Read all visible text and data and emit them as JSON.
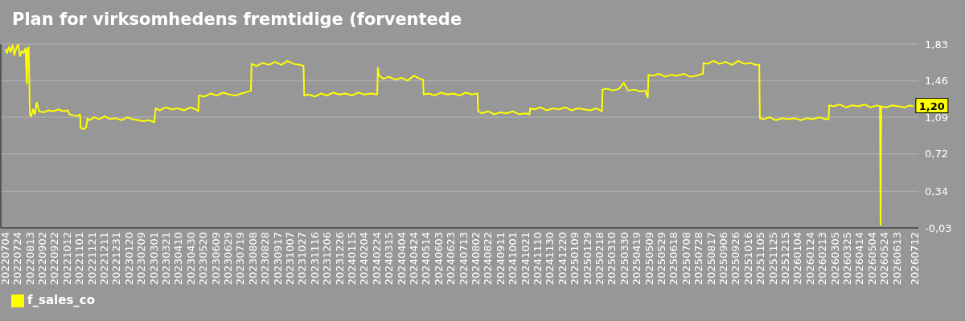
{
  "chart_data": {
    "type": "line",
    "title": "Plan for virksomhedens fremtidige (forventede",
    "x": [
      "2022-07-04",
      "2022-07-07",
      "2022-07-10",
      "2022-07-13",
      "2022-07-16",
      "2022-07-19",
      "2022-07-22",
      "2022-07-25",
      "2022-07-28",
      "2022-07-31",
      "2022-08-03",
      "2022-08-06",
      "2022-08-08",
      "2022-08-09",
      "2022-08-11",
      "2022-08-13",
      "2022-08-15",
      "2022-08-18",
      "2022-08-21",
      "2022-08-24",
      "2022-08-28",
      "2022-09-04",
      "2022-09-12",
      "2022-09-20",
      "2022-09-28",
      "2022-10-06",
      "2022-10-13",
      "2022-10-16",
      "2022-10-22",
      "2022-10-28",
      "2022-11-02",
      "2022-11-03",
      "2022-11-08",
      "2022-11-12",
      "2022-11-14",
      "2022-11-17",
      "2022-11-25",
      "2022-12-03",
      "2022-12-12",
      "2022-12-21",
      "2022-12-30",
      "2023-01-08",
      "2023-01-17",
      "2023-01-26",
      "2023-02-04",
      "2023-02-13",
      "2023-02-22",
      "2023-03-02",
      "2023-03-04",
      "2023-03-11",
      "2023-03-20",
      "2023-03-30",
      "2023-04-09",
      "2023-04-19",
      "2023-04-29",
      "2023-05-08",
      "2023-05-12",
      "2023-05-13",
      "2023-05-22",
      "2023-06-01",
      "2023-06-11",
      "2023-06-21",
      "2023-07-01",
      "2023-07-11",
      "2023-07-21",
      "2023-08-01",
      "2023-08-05",
      "2023-08-06",
      "2023-08-14",
      "2023-08-24",
      "2023-09-03",
      "2023-09-13",
      "2023-09-23",
      "2023-10-03",
      "2023-10-13",
      "2023-10-23",
      "2023-10-29",
      "2023-10-30",
      "2023-11-06",
      "2023-11-16",
      "2023-11-26",
      "2023-12-06",
      "2023-12-16",
      "2023-12-26",
      "2024-01-05",
      "2024-01-15",
      "2024-01-25",
      "2024-02-04",
      "2024-02-14",
      "2024-02-25",
      "2024-02-26",
      "2024-02-28",
      "2024-03-06",
      "2024-03-15",
      "2024-03-25",
      "2024-04-04",
      "2024-04-14",
      "2024-04-24",
      "2024-05-04",
      "2024-05-09",
      "2024-05-10",
      "2024-05-18",
      "2024-05-28",
      "2024-06-07",
      "2024-06-17",
      "2024-06-27",
      "2024-07-07",
      "2024-07-17",
      "2024-07-27",
      "2024-08-05",
      "2024-08-06",
      "2024-08-12",
      "2024-08-22",
      "2024-09-01",
      "2024-09-11",
      "2024-09-21",
      "2024-10-01",
      "2024-10-11",
      "2024-10-21",
      "2024-10-28",
      "2024-10-29",
      "2024-11-05",
      "2024-11-15",
      "2024-11-25",
      "2024-12-05",
      "2024-12-15",
      "2024-12-25",
      "2025-01-04",
      "2025-01-14",
      "2025-01-24",
      "2025-02-03",
      "2025-02-13",
      "2025-02-22",
      "2025-02-23",
      "2025-03-02",
      "2025-03-12",
      "2025-03-22",
      "2025-03-29",
      "2025-04-05",
      "2025-04-15",
      "2025-04-25",
      "2025-05-03",
      "2025-05-07",
      "2025-05-08",
      "2025-05-15",
      "2025-05-25",
      "2025-06-04",
      "2025-06-14",
      "2025-06-24",
      "2025-07-04",
      "2025-07-14",
      "2025-07-24",
      "2025-08-04",
      "2025-08-05",
      "2025-08-11",
      "2025-08-21",
      "2025-08-31",
      "2025-09-10",
      "2025-09-20",
      "2025-09-30",
      "2025-10-10",
      "2025-10-20",
      "2025-10-28",
      "2025-11-03",
      "2025-11-04",
      "2025-11-10",
      "2025-11-20",
      "2025-11-30",
      "2025-12-10",
      "2025-12-20",
      "2025-12-30",
      "2026-01-09",
      "2026-01-19",
      "2026-01-29",
      "2026-02-08",
      "2026-02-18",
      "2026-02-23",
      "2026-02-24",
      "2026-03-03",
      "2026-03-13",
      "2026-03-23",
      "2026-04-02",
      "2026-04-12",
      "2026-04-22",
      "2026-05-02",
      "2026-05-12",
      "2026-05-17",
      "2026-05-18",
      "2026-05-19",
      "2026-05-27",
      "2026-06-06",
      "2026-06-16",
      "2026-06-26",
      "2026-07-04",
      "2026-07-10"
    ],
    "series": [
      {
        "name": "f_sales_co",
        "color": "#ffff00",
        "values": [
          1.78,
          1.74,
          1.8,
          1.75,
          1.82,
          1.72,
          1.79,
          1.83,
          1.71,
          1.76,
          1.74,
          1.79,
          1.43,
          1.77,
          1.8,
          1.12,
          1.1,
          1.17,
          1.12,
          1.24,
          1.15,
          1.14,
          1.16,
          1.15,
          1.17,
          1.15,
          1.16,
          1.12,
          1.11,
          1.1,
          1.12,
          0.98,
          0.97,
          0.99,
          1.08,
          1.06,
          1.09,
          1.07,
          1.1,
          1.07,
          1.08,
          1.06,
          1.09,
          1.07,
          1.06,
          1.05,
          1.06,
          1.04,
          1.18,
          1.16,
          1.19,
          1.17,
          1.18,
          1.16,
          1.19,
          1.17,
          1.15,
          1.31,
          1.3,
          1.33,
          1.31,
          1.34,
          1.32,
          1.31,
          1.33,
          1.35,
          1.36,
          1.63,
          1.61,
          1.64,
          1.62,
          1.65,
          1.62,
          1.66,
          1.63,
          1.62,
          1.61,
          1.31,
          1.32,
          1.3,
          1.33,
          1.31,
          1.34,
          1.32,
          1.33,
          1.31,
          1.34,
          1.32,
          1.33,
          1.32,
          1.59,
          1.51,
          1.48,
          1.5,
          1.47,
          1.49,
          1.46,
          1.51,
          1.48,
          1.47,
          1.32,
          1.33,
          1.31,
          1.34,
          1.32,
          1.33,
          1.31,
          1.34,
          1.32,
          1.33,
          1.15,
          1.13,
          1.15,
          1.12,
          1.14,
          1.13,
          1.15,
          1.12,
          1.13,
          1.12,
          1.18,
          1.17,
          1.19,
          1.16,
          1.18,
          1.17,
          1.19,
          1.16,
          1.18,
          1.17,
          1.16,
          1.18,
          1.15,
          1.37,
          1.38,
          1.36,
          1.38,
          1.44,
          1.36,
          1.37,
          1.35,
          1.36,
          1.29,
          1.52,
          1.51,
          1.53,
          1.5,
          1.52,
          1.51,
          1.53,
          1.5,
          1.51,
          1.53,
          1.64,
          1.63,
          1.66,
          1.63,
          1.65,
          1.62,
          1.66,
          1.63,
          1.64,
          1.62,
          1.62,
          1.08,
          1.07,
          1.09,
          1.06,
          1.08,
          1.07,
          1.08,
          1.06,
          1.08,
          1.07,
          1.09,
          1.07,
          1.07,
          1.21,
          1.2,
          1.22,
          1.19,
          1.21,
          1.2,
          1.22,
          1.19,
          1.21,
          1.2,
          0.0,
          1.2,
          1.19,
          1.21,
          1.2,
          1.19,
          1.21,
          1.2
        ]
      }
    ],
    "xlim": [
      "2022-06-27",
      "2026-07-18"
    ],
    "xticks": [
      {
        "value": "2022-07-04",
        "label": "20220704"
      },
      {
        "value": "2022-07-24",
        "label": "20220724"
      },
      {
        "value": "2022-08-13",
        "label": "20220813"
      },
      {
        "value": "2022-09-02",
        "label": "20220902"
      },
      {
        "value": "2022-09-22",
        "label": "20220922"
      },
      {
        "value": "2022-10-12",
        "label": "20221012"
      },
      {
        "value": "2022-11-01",
        "label": "20221101"
      },
      {
        "value": "2022-11-21",
        "label": "20221121"
      },
      {
        "value": "2022-12-11",
        "label": "20221211"
      },
      {
        "value": "2022-12-31",
        "label": "20221231"
      },
      {
        "value": "2023-01-20",
        "label": "20230120"
      },
      {
        "value": "2023-02-09",
        "label": "20230209"
      },
      {
        "value": "2023-03-01",
        "label": "20230301"
      },
      {
        "value": "2023-03-21",
        "label": "20230321"
      },
      {
        "value": "2023-04-10",
        "label": "20230410"
      },
      {
        "value": "2023-04-30",
        "label": "20230430"
      },
      {
        "value": "2023-05-20",
        "label": "20230520"
      },
      {
        "value": "2023-06-09",
        "label": "20230609"
      },
      {
        "value": "2023-06-29",
        "label": "20230629"
      },
      {
        "value": "2023-07-19",
        "label": "20230719"
      },
      {
        "value": "2023-08-08",
        "label": "20230808"
      },
      {
        "value": "2023-08-28",
        "label": "20230828"
      },
      {
        "value": "2023-09-17",
        "label": "20230917"
      },
      {
        "value": "2023-10-07",
        "label": "20231007"
      },
      {
        "value": "2023-10-27",
        "label": "20231027"
      },
      {
        "value": "2023-11-16",
        "label": "20231116"
      },
      {
        "value": "2023-12-06",
        "label": "20231206"
      },
      {
        "value": "2023-12-26",
        "label": "20231226"
      },
      {
        "value": "2024-01-15",
        "label": "20240115"
      },
      {
        "value": "2024-02-04",
        "label": "20240204"
      },
      {
        "value": "2024-02-24",
        "label": "20240224"
      },
      {
        "value": "2024-03-15",
        "label": "20240315"
      },
      {
        "value": "2024-04-04",
        "label": "20240404"
      },
      {
        "value": "2024-04-24",
        "label": "20240424"
      },
      {
        "value": "2024-05-14",
        "label": "20240514"
      },
      {
        "value": "2024-06-03",
        "label": "20240603"
      },
      {
        "value": "2024-06-23",
        "label": "20240623"
      },
      {
        "value": "2024-07-13",
        "label": "20240713"
      },
      {
        "value": "2024-08-02",
        "label": "20240802"
      },
      {
        "value": "2024-08-22",
        "label": "20240822"
      },
      {
        "value": "2024-09-11",
        "label": "20240911"
      },
      {
        "value": "2024-10-01",
        "label": "20241001"
      },
      {
        "value": "2024-10-21",
        "label": "20241021"
      },
      {
        "value": "2024-11-10",
        "label": "20241110"
      },
      {
        "value": "2024-11-30",
        "label": "20241130"
      },
      {
        "value": "2024-12-20",
        "label": "20241220"
      },
      {
        "value": "2025-01-09",
        "label": "20250109"
      },
      {
        "value": "2025-01-29",
        "label": "20250129"
      },
      {
        "value": "2025-02-18",
        "label": "20250218"
      },
      {
        "value": "2025-03-10",
        "label": "20250310"
      },
      {
        "value": "2025-03-30",
        "label": "20250330"
      },
      {
        "value": "2025-04-19",
        "label": "20250419"
      },
      {
        "value": "2025-05-09",
        "label": "20250509"
      },
      {
        "value": "2025-05-29",
        "label": "20250529"
      },
      {
        "value": "2025-06-18",
        "label": "20250618"
      },
      {
        "value": "2025-07-08",
        "label": "20250708"
      },
      {
        "value": "2025-07-28",
        "label": "20250728"
      },
      {
        "value": "2025-08-17",
        "label": "20250817"
      },
      {
        "value": "2025-09-06",
        "label": "20250906"
      },
      {
        "value": "2025-09-26",
        "label": "20250926"
      },
      {
        "value": "2025-10-16",
        "label": "20251016"
      },
      {
        "value": "2025-11-05",
        "label": "20251105"
      },
      {
        "value": "2025-11-25",
        "label": "20251125"
      },
      {
        "value": "2025-12-15",
        "label": "20251215"
      },
      {
        "value": "2026-01-04",
        "label": "20260104"
      },
      {
        "value": "2026-01-24",
        "label": "20260124"
      },
      {
        "value": "2026-02-13",
        "label": "20260213"
      },
      {
        "value": "2026-03-05",
        "label": "20260305"
      },
      {
        "value": "2026-03-25",
        "label": "20260325"
      },
      {
        "value": "2026-04-14",
        "label": "20260414"
      },
      {
        "value": "2026-05-04",
        "label": "20260504"
      },
      {
        "value": "2026-05-24",
        "label": "20260524"
      },
      {
        "value": "2026-06-13",
        "label": "20260613"
      },
      {
        "value": "2026-07-12",
        "label": "20260712"
      }
    ],
    "ylim": [
      -0.03,
      1.83
    ],
    "yticks": [
      {
        "value": -0.03,
        "label": "-0,03"
      },
      {
        "value": 0.34,
        "label": "0,34"
      },
      {
        "value": 0.72,
        "label": "0,72"
      },
      {
        "value": 1.09,
        "label": "1,09"
      },
      {
        "value": 1.46,
        "label": "1,46"
      },
      {
        "value": 1.83,
        "label": "1,83"
      }
    ],
    "grid": "y",
    "legend": "bottom left",
    "annotations": [
      {
        "text": "1,20",
        "x": "2026-07-10",
        "y": 1.2
      }
    ]
  }
}
